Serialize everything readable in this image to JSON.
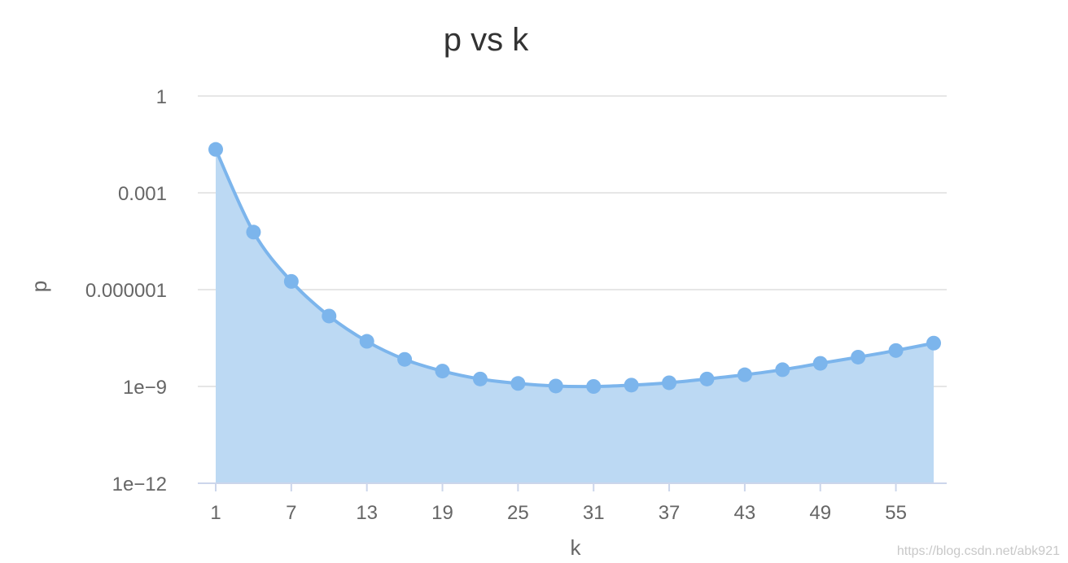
{
  "chart_data": {
    "type": "area",
    "title": "p vs k",
    "xlabel": "k",
    "ylabel": "p",
    "yscale": "log",
    "ylim": [
      1e-12,
      1
    ],
    "y_ticks": [
      {
        "value": 1,
        "label": "1"
      },
      {
        "value": 0.001,
        "label": "0.001"
      },
      {
        "value": 1e-06,
        "label": "0.000001"
      },
      {
        "value": 1e-09,
        "label": "1e−9"
      },
      {
        "value": 1e-12,
        "label": "1e−12"
      }
    ],
    "x_tick_labels": [
      "1",
      "7",
      "13",
      "19",
      "25",
      "31",
      "37",
      "43",
      "49",
      "55"
    ],
    "grid": true,
    "legend": "none",
    "color": "#7cb5ec",
    "fill_color": "#bcd9f3",
    "series": [
      {
        "x": [
          1,
          4,
          7,
          10,
          13,
          16,
          19,
          22,
          25,
          28,
          31,
          34,
          37,
          40,
          43,
          46,
          49,
          52,
          55,
          58
        ],
        "values": [
          0.0221,
          6.07e-05,
          1.8e-06,
          1.52e-07,
          2.5e-08,
          6.9e-09,
          3e-09,
          1.7e-09,
          1.24e-09,
          1.03e-09,
          1e-09,
          1.1e-09,
          1.3e-09,
          1.7e-09,
          2.3e-09,
          3.3e-09,
          5.2e-09,
          8.1e-09,
          1.3e-08,
          2.2e-08
        ]
      }
    ]
  },
  "watermark": "https://blog.csdn.net/abk921"
}
